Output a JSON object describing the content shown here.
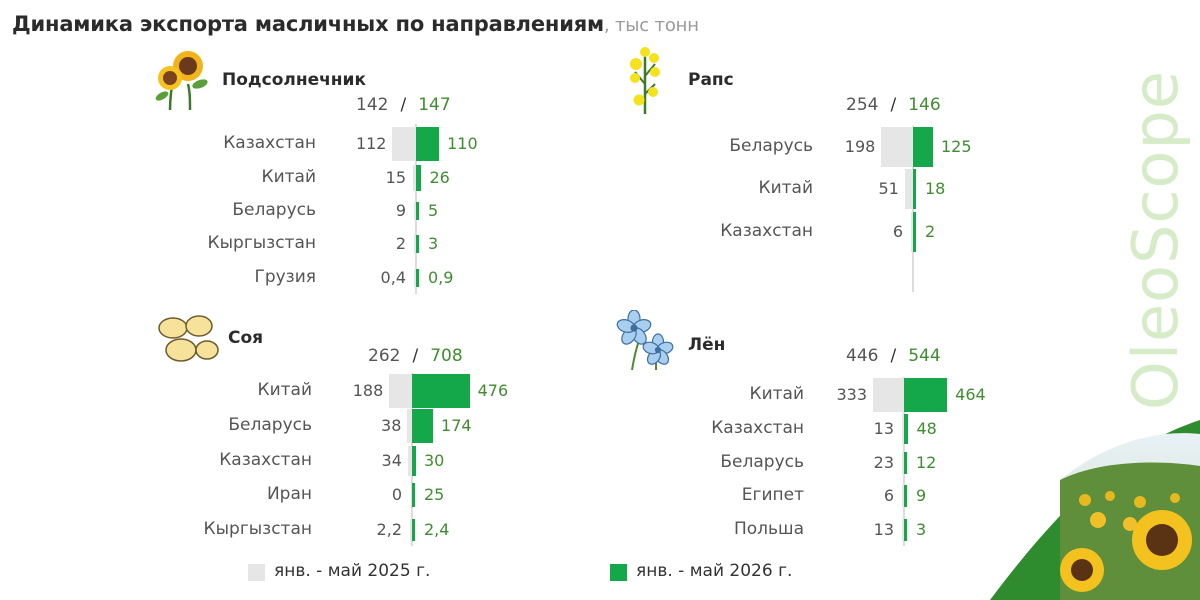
{
  "title": {
    "main": "Динамика экспорта масличных по направлениям",
    "unit": ", тыс тонн"
  },
  "brand": "OleoScope",
  "legend": {
    "old_label": "янв. - май 2025 г.",
    "new_label": "янв. - май 2026 г.",
    "old_color": "#e6e6e6",
    "new_color": "#15a84a"
  },
  "chart_data": [
    {
      "type": "bar",
      "title": "Подсолнечник",
      "icon": "sunflower-icon",
      "total_old": "142",
      "total_new": "147",
      "categories": [
        "Казахстан",
        "Китай",
        "Беларусь",
        "Кыргызстан",
        "Грузия"
      ],
      "series": [
        {
          "name": "янв. - май 2025 г.",
          "values": [
            112,
            15,
            9,
            2,
            0.4
          ],
          "labels": [
            "112",
            "15",
            "9",
            "2",
            "0,4"
          ]
        },
        {
          "name": "янв. - май 2026 г.",
          "values": [
            110,
            26,
            5,
            3,
            0.9
          ],
          "labels": [
            "110",
            "26",
            "5",
            "3",
            "0,9"
          ]
        }
      ]
    },
    {
      "type": "bar",
      "title": "Рапс",
      "icon": "rapeseed-icon",
      "total_old": "254",
      "total_new": "146",
      "categories": [
        "Беларусь",
        "Китай",
        "Казахстан"
      ],
      "series": [
        {
          "name": "янв. - май 2025 г.",
          "values": [
            198,
            51,
            6
          ],
          "labels": [
            "198",
            "51",
            "6"
          ]
        },
        {
          "name": "янв. - май 2026 г.",
          "values": [
            125,
            18,
            2
          ],
          "labels": [
            "125",
            "18",
            "2"
          ]
        }
      ]
    },
    {
      "type": "bar",
      "title": "Соя",
      "icon": "soybean-icon",
      "total_old": "262",
      "total_new": "708",
      "categories": [
        "Китай",
        "Беларусь",
        "Казахстан",
        "Иран",
        "Кыргызстан"
      ],
      "series": [
        {
          "name": "янв. - май 2025 г.",
          "values": [
            188,
            38,
            34,
            0,
            2.2
          ],
          "labels": [
            "188",
            "38",
            "34",
            "0",
            "2,2"
          ]
        },
        {
          "name": "янв. - май 2026 г.",
          "values": [
            476,
            174,
            30,
            25,
            2.4
          ],
          "labels": [
            "476",
            "174",
            "30",
            "25",
            "2,4"
          ]
        }
      ]
    },
    {
      "type": "bar",
      "title": "Лён",
      "icon": "flax-flower-icon",
      "total_old": "446",
      "total_new": "544",
      "categories": [
        "Китай",
        "Казахстан",
        "Беларусь",
        "Египет",
        "Польша"
      ],
      "series": [
        {
          "name": "янв. - май 2025 г.",
          "values": [
            333,
            13,
            23,
            6,
            13
          ],
          "labels": [
            "333",
            "13",
            "23",
            "6",
            "13"
          ]
        },
        {
          "name": "янв. - май 2026 г.",
          "values": [
            464,
            48,
            12,
            9,
            3
          ],
          "labels": [
            "464",
            "48",
            "12",
            "9",
            "3"
          ]
        }
      ]
    }
  ]
}
